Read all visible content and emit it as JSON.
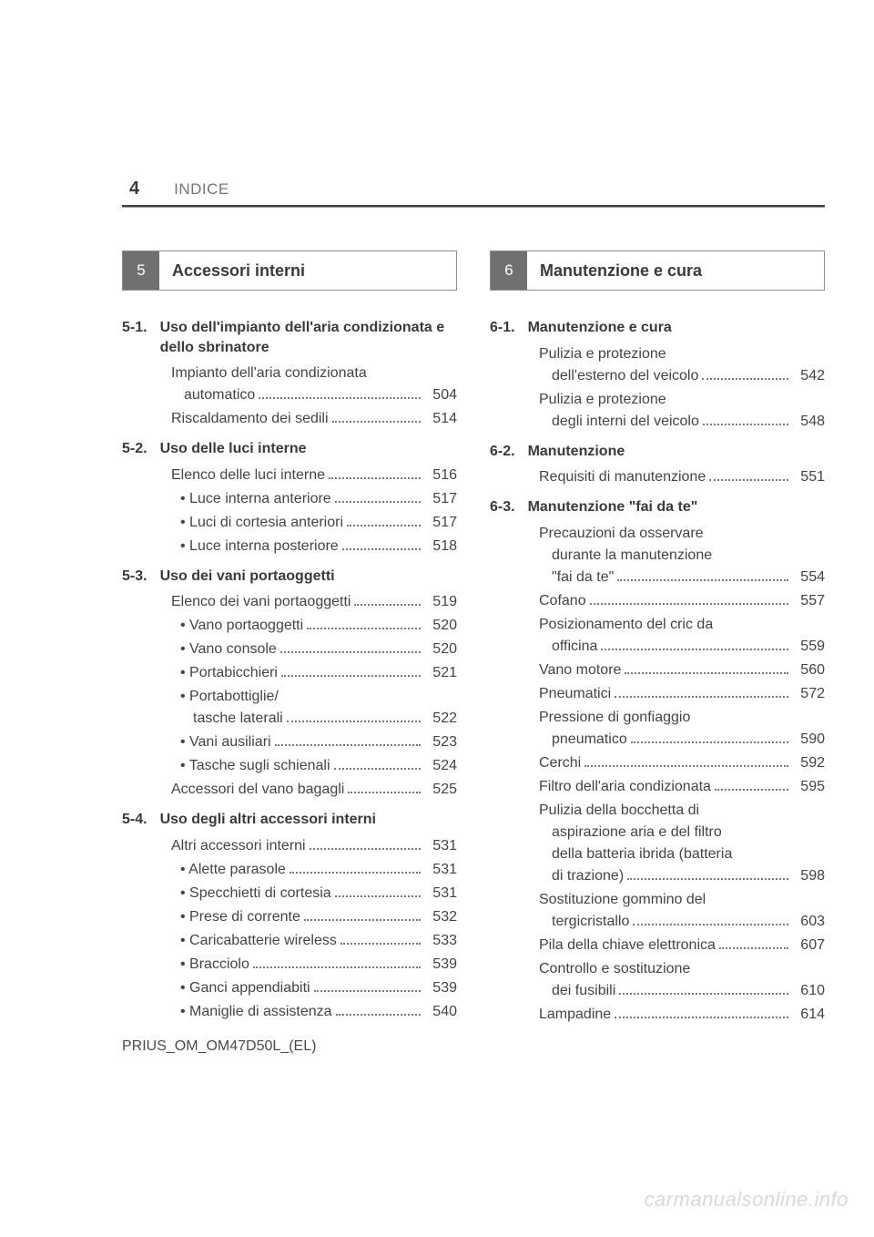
{
  "header": {
    "page_number": "4",
    "doc_section": "INDICE"
  },
  "footer": {
    "code": "PRIUS_OM_OM47D50L_(EL)"
  },
  "watermark": "carmanualsonline.info",
  "left": {
    "chapter_num": "5",
    "chapter_title": "Accessori interni",
    "sections": [
      {
        "num": "5-1.",
        "title": "Uso dell'impianto dell'aria condizionata e dello sbrinatore",
        "entries": [
          {
            "label": "Impianto dell'aria condizionata",
            "cont": "automatico",
            "page": "504"
          },
          {
            "label": "Riscaldamento dei sedili",
            "page": "514"
          }
        ]
      },
      {
        "num": "5-2.",
        "title": "Uso delle luci interne",
        "entries": [
          {
            "label": "Elenco delle luci interne",
            "page": "516"
          },
          {
            "label": "Luce interna anteriore",
            "page": "517",
            "bullet": true
          },
          {
            "label": "Luci di cortesia anteriori",
            "page": "517",
            "bullet": true
          },
          {
            "label": "Luce interna posteriore",
            "page": "518",
            "bullet": true
          }
        ]
      },
      {
        "num": "5-3.",
        "title": "Uso dei vani portaoggetti",
        "entries": [
          {
            "label": "Elenco dei vani portaoggetti",
            "page": "519"
          },
          {
            "label": "Vano portaoggetti",
            "page": "520",
            "bullet": true
          },
          {
            "label": "Vano console",
            "page": "520",
            "bullet": true
          },
          {
            "label": "Portabicchieri",
            "page": "521",
            "bullet": true
          },
          {
            "label": "Portabottiglie/",
            "cont": "tasche laterali",
            "page": "522",
            "bullet": true
          },
          {
            "label": "Vani ausiliari",
            "page": "523",
            "bullet": true
          },
          {
            "label": "Tasche sugli schienali",
            "page": "524",
            "bullet": true
          },
          {
            "label": "Accessori del vano bagagli",
            "page": "525"
          }
        ]
      },
      {
        "num": "5-4.",
        "title": "Uso degli altri accessori interni",
        "entries": [
          {
            "label": "Altri accessori interni",
            "page": "531"
          },
          {
            "label": "Alette parasole",
            "page": "531",
            "bullet": true
          },
          {
            "label": "Specchietti di cortesia",
            "page": "531",
            "bullet": true
          },
          {
            "label": "Prese di corrente",
            "page": "532",
            "bullet": true
          },
          {
            "label": "Caricabatterie wireless",
            "page": "533",
            "bullet": true
          },
          {
            "label": "Bracciolo",
            "page": "539",
            "bullet": true
          },
          {
            "label": "Ganci appendiabiti",
            "page": "539",
            "bullet": true
          },
          {
            "label": "Maniglie di assistenza",
            "page": "540",
            "bullet": true
          }
        ]
      }
    ]
  },
  "right": {
    "chapter_num": "6",
    "chapter_title": "Manutenzione e cura",
    "sections": [
      {
        "num": "6-1.",
        "title": "Manutenzione e cura",
        "entries": [
          {
            "label": "Pulizia e protezione",
            "cont": "dell'esterno del veicolo",
            "page": "542"
          },
          {
            "label": "Pulizia e protezione",
            "cont": "degli interni del veicolo",
            "page": "548"
          }
        ]
      },
      {
        "num": "6-2.",
        "title": "Manutenzione",
        "entries": [
          {
            "label": "Requisiti di manutenzione",
            "page": "551"
          }
        ]
      },
      {
        "num": "6-3.",
        "title": "Manutenzione \"fai da te\"",
        "entries": [
          {
            "label": "Precauzioni da osservare",
            "cont": "durante la manutenzione",
            "cont2": "\"fai da te\"",
            "page": "554"
          },
          {
            "label": "Cofano",
            "page": "557"
          },
          {
            "label": "Posizionamento del cric da",
            "cont": "officina",
            "page": "559"
          },
          {
            "label": "Vano motore",
            "page": "560"
          },
          {
            "label": "Pneumatici",
            "page": "572"
          },
          {
            "label": "Pressione di gonfiaggio",
            "cont": "pneumatico",
            "page": "590"
          },
          {
            "label": "Cerchi",
            "page": "592"
          },
          {
            "label": "Filtro dell'aria condizionata",
            "page": "595"
          },
          {
            "label": "Pulizia della bocchetta di",
            "cont": "aspirazione aria e del filtro",
            "cont2": "della batteria ibrida (batteria",
            "cont3": "di trazione)",
            "page": "598"
          },
          {
            "label": "Sostituzione gommino del",
            "cont": "tergicristallo",
            "page": "603"
          },
          {
            "label": "Pila della chiave elettronica",
            "page": "607"
          },
          {
            "label": "Controllo e sostituzione",
            "cont": "dei fusibili",
            "page": "610"
          },
          {
            "label": "Lampadine",
            "page": "614"
          }
        ]
      }
    ]
  }
}
